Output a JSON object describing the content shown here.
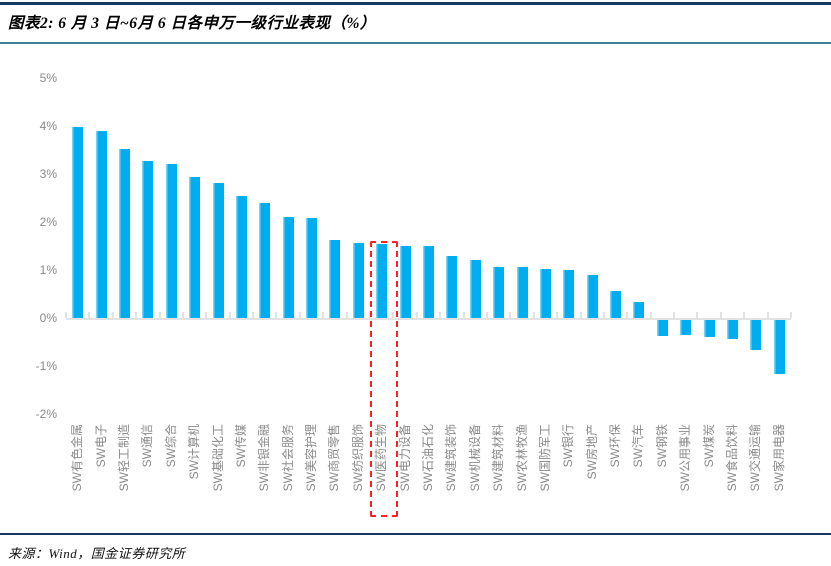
{
  "header": {
    "title": "图表2: 6 月 3 日~6月 6 日各申万一级行业表现（%）"
  },
  "footer": {
    "source": "来源：Wind，国金证券研究所"
  },
  "colors": {
    "bar": "#00AEEF",
    "bar_edge": "#72D4F6",
    "highlight": "#FF1F1F",
    "axis": "#E2E2E2",
    "tick_label": "#8A8A8A",
    "rule_top": "#17375E",
    "rule_title": "#3D7E9A",
    "rule_footer": "#17375E"
  },
  "chart_data": {
    "type": "bar",
    "title": "图表2: 6 月 3 日~6月 6 日各申万一级行业表现（%）",
    "xlabel": "",
    "ylabel": "",
    "ylim": [
      -2,
      5
    ],
    "ytick_step": 1,
    "ytick_labels": [
      "5%",
      "4%",
      "3%",
      "2%",
      "1%",
      "0%",
      "-1%",
      "-2%"
    ],
    "grid": false,
    "legend": null,
    "categories": [
      "SW有色金属",
      "SW电子",
      "SW轻工制造",
      "SW通信",
      "SW综合",
      "SW计算机",
      "SW基础化工",
      "SW传媒",
      "SW非银金融",
      "SW社会服务",
      "SW美容护理",
      "SW商贸零售",
      "SW纺织服饰",
      "SW医药生物",
      "SW电力设备",
      "SW石油石化",
      "SW建筑装饰",
      "SW机械设备",
      "SW建筑材料",
      "SW农林牧渔",
      "SW国防军工",
      "SW银行",
      "SW房地产",
      "SW环保",
      "SW汽车",
      "SW钢铁",
      "SW公用事业",
      "SW煤炭",
      "SW食品饮料",
      "SW交通运输",
      "SW家用电器"
    ],
    "values": [
      3.98,
      3.9,
      3.52,
      3.27,
      3.21,
      2.94,
      2.81,
      2.54,
      2.4,
      2.1,
      2.08,
      1.63,
      1.56,
      1.54,
      1.5,
      1.49,
      1.29,
      1.21,
      1.07,
      1.06,
      1.02,
      1.0,
      0.9,
      0.56,
      0.33,
      -0.38,
      -0.36,
      -0.4,
      -0.44,
      -0.67,
      -1.16
    ],
    "highlighted_category": "SW医药生物",
    "highlight_style": "red-dashed-box"
  }
}
